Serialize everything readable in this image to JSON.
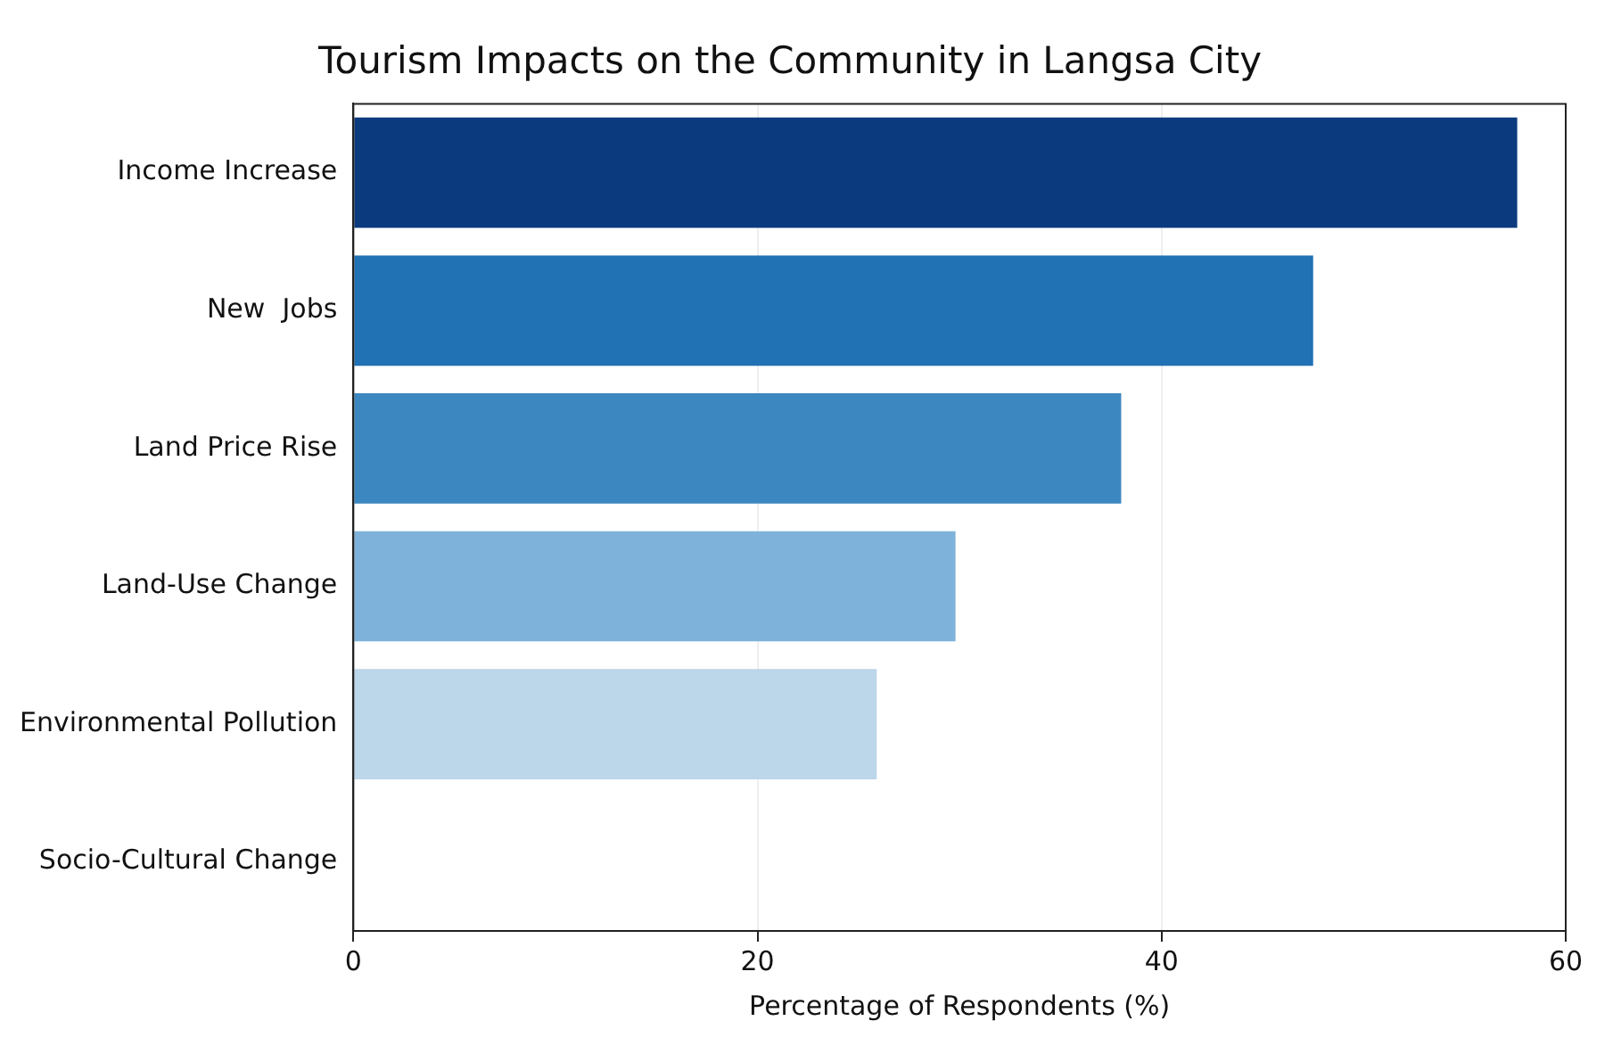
{
  "chart_data": {
    "type": "bar",
    "orientation": "horizontal",
    "title": "Tourism Impacts on the Community in Langsa City",
    "xlabel": "Percentage of Respondents (%)",
    "categories": [
      "Income Increase",
      "New  Jobs",
      "Land Price Rise",
      "Land-Use Change",
      "Environmental Pollution",
      "Socio-Cultural Change"
    ],
    "values": [
      57.6,
      47.5,
      38,
      29.8,
      25.9,
      0
    ],
    "colors": [
      "#0b3a7e",
      "#2171b5",
      "#3d87c0",
      "#7fb2da",
      "#bcd6ea",
      "#deebf7"
    ],
    "xlim": [
      0,
      60
    ],
    "xticks": [
      0,
      20,
      40,
      60
    ],
    "grid": "x",
    "legend": false
  }
}
